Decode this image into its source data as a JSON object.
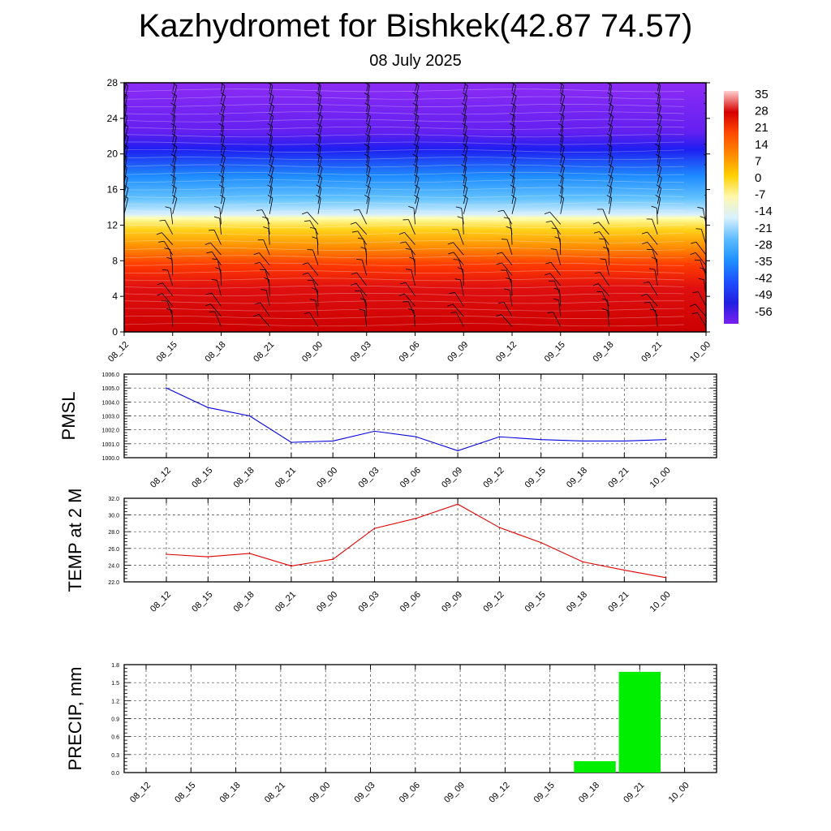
{
  "header": {
    "title": "Kazhydromet for Bishkek(42.87 74.57)",
    "subtitle": "08 July 2025"
  },
  "chart_data": [
    {
      "type": "heatmap",
      "title": "",
      "times": [
        "08_12",
        "08_15",
        "08_18",
        "08_21",
        "09_00",
        "09_03",
        "09_06",
        "09_09",
        "09_12",
        "09_15",
        "09_18",
        "09_21",
        "10_00"
      ],
      "y_ticks": [
        0,
        4,
        8,
        12,
        16,
        20,
        24,
        28
      ],
      "ylim": [
        0,
        28
      ],
      "colorbar_labels": [
        "35",
        "28",
        "21",
        "14",
        "7",
        "0",
        "-7",
        "-14",
        "-21",
        "-28",
        "-35",
        "-42",
        "-49",
        "-56"
      ],
      "color_stops": [
        {
          "level": 0,
          "color": "#cc0000"
        },
        {
          "level": 5,
          "color": "#e01010"
        },
        {
          "level": 7.5,
          "color": "#ff3a00"
        },
        {
          "level": 9.5,
          "color": "#ff8c00"
        },
        {
          "level": 11.5,
          "color": "#ffd21a"
        },
        {
          "level": 12.8,
          "color": "#ffffb0"
        },
        {
          "level": 13.2,
          "color": "#d8f0ff"
        },
        {
          "level": 15,
          "color": "#62c2ff"
        },
        {
          "level": 17.5,
          "color": "#1e8cff"
        },
        {
          "level": 20.5,
          "color": "#1e1ef0"
        },
        {
          "level": 22.5,
          "color": "#6420f0"
        },
        {
          "level": 28,
          "color": "#8c2cf5"
        }
      ],
      "colorbar_colors": [
        "#ffd0d0",
        "#d50000",
        "#ff4a00",
        "#ff8a00",
        "#ffd000",
        "#fff8b0",
        "#d8f0ff",
        "#5cbcff",
        "#1e90ff",
        "#1e50ff",
        "#2020e0",
        "#7a20f0"
      ],
      "grid": false,
      "wind_barbs": true
    },
    {
      "type": "line",
      "ylabel": "PMSL",
      "x": [
        "08_12",
        "08_15",
        "08_18",
        "08_21",
        "09_00",
        "09_03",
        "09_06",
        "09_09",
        "09_12",
        "09_15",
        "09_18",
        "09_21",
        "10_00"
      ],
      "values": [
        1005.0,
        1003.6,
        1003.0,
        1001.1,
        1001.2,
        1001.9,
        1001.5,
        1000.5,
        1001.5,
        1001.3,
        1001.2,
        1001.2,
        1001.3
      ],
      "ylim": [
        1000.0,
        1006.0
      ],
      "y_ticks": [
        "1000.0",
        "1001.0",
        "1002.0",
        "1003.0",
        "1004.0",
        "1005.0",
        "1006.0"
      ],
      "line_color": "#0000dd",
      "grid": true
    },
    {
      "type": "line",
      "ylabel": "TEMP at 2 M",
      "x": [
        "08_12",
        "08_15",
        "08_18",
        "08_21",
        "09_00",
        "09_03",
        "09_06",
        "09_09",
        "09_12",
        "09_15",
        "09_18",
        "09_21",
        "10_00"
      ],
      "values": [
        25.3,
        25.0,
        25.4,
        23.9,
        24.7,
        28.4,
        29.6,
        31.3,
        28.5,
        26.7,
        24.4,
        23.4,
        22.5
      ],
      "ylim": [
        22.0,
        32.0
      ],
      "y_ticks": [
        "22.0",
        "24.0",
        "26.0",
        "28.0",
        "30.0",
        "32.0"
      ],
      "line_color": "#e00000",
      "grid": true
    },
    {
      "type": "bar",
      "ylabel": "PRECIP, mm",
      "categories": [
        "08_12",
        "08_15",
        "08_18",
        "08_21",
        "09_00",
        "09_03",
        "09_06",
        "09_09",
        "09_12",
        "09_15",
        "09_18",
        "09_21",
        "10_00"
      ],
      "values": [
        0,
        0,
        0,
        0,
        0,
        0,
        0,
        0,
        0,
        0,
        0.19,
        1.68,
        0
      ],
      "ylim": [
        0,
        1.8
      ],
      "y_ticks": [
        "0.0",
        "0.3",
        "0.6",
        "0.9",
        "1.2",
        "1.5",
        "1.8"
      ],
      "bar_color": "#00ee00",
      "grid": true
    }
  ]
}
